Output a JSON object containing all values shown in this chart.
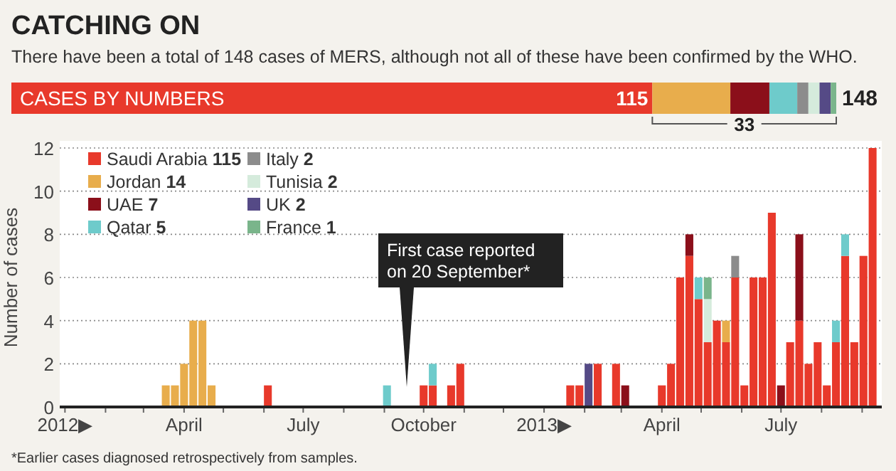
{
  "chart_data": [
    {
      "type": "bar",
      "orientation": "horizontal",
      "stacked": true,
      "title": "CATCHING ON",
      "subtitle": "There have been a total of 148 cases of MERS, although not all of these have been confirmed by the WHO.",
      "categories": [
        "CASES BY NUMBERS"
      ],
      "xlim": [
        0,
        148
      ],
      "tick_labels": false,
      "totals": [
        "148"
      ],
      "annotations": [
        "33"
      ],
      "series": [
        {
          "color": "#e8392b",
          "values": [
            115
          ],
          "value_labels": [
            "115"
          ]
        },
        {
          "color": "#e8ad4c",
          "values": [
            14
          ]
        },
        {
          "color": "#8b0f1a",
          "values": [
            7
          ]
        },
        {
          "color": "#6ecbcb",
          "values": [
            5
          ]
        },
        {
          "color": "#8c8c8c",
          "values": [
            2
          ]
        },
        {
          "color": "#d5ebdc",
          "values": [
            2
          ]
        },
        {
          "color": "#554a86",
          "values": [
            2
          ]
        },
        {
          "color": "#7ab58b",
          "values": [
            1
          ]
        }
      ]
    },
    {
      "type": "bar",
      "stacked": true,
      "ylabel": "Number of cases",
      "grid": "y",
      "legend": "top left",
      "ylim": [
        0,
        12
      ],
      "yticks": [
        0,
        2,
        4,
        6,
        8,
        10,
        12
      ],
      "xlim": [
        "2011-12-28",
        "2013-09-16"
      ],
      "xticks": [
        {
          "value": "2012-01-01",
          "label": "2012▶"
        },
        {
          "value": "2012-02-01",
          "label": null
        },
        {
          "value": "2012-03-01",
          "label": null
        },
        {
          "value": "2012-04-01",
          "label": "April"
        },
        {
          "value": "2012-05-01",
          "label": null
        },
        {
          "value": "2012-06-01",
          "label": null
        },
        {
          "value": "2012-07-01",
          "label": "July"
        },
        {
          "value": "2012-08-01",
          "label": null
        },
        {
          "value": "2012-09-01",
          "label": null
        },
        {
          "value": "2012-10-01",
          "label": "October"
        },
        {
          "value": "2012-11-01",
          "label": null
        },
        {
          "value": "2012-12-01",
          "label": null
        },
        {
          "value": "2013-01-01",
          "label": "2013▶"
        },
        {
          "value": "2013-02-01",
          "label": null
        },
        {
          "value": "2013-03-01",
          "label": null
        },
        {
          "value": "2013-04-01",
          "label": "April"
        },
        {
          "value": "2013-05-01",
          "label": null
        },
        {
          "value": "2013-06-01",
          "label": null
        },
        {
          "value": "2013-07-01",
          "label": "July"
        },
        {
          "value": "2013-08-01",
          "label": null
        },
        {
          "value": "2013-09-01",
          "label": null
        }
      ],
      "x": [
        "2012-03-18",
        "2012-03-25",
        "2012-04-01",
        "2012-04-08",
        "2012-04-15",
        "2012-04-22",
        "2012-06-04",
        "2012-09-03",
        "2012-10-01",
        "2012-10-08",
        "2012-10-22",
        "2012-10-29",
        "2013-01-21",
        "2013-01-28",
        "2013-02-04",
        "2013-02-11",
        "2013-02-25",
        "2013-03-04",
        "2013-04-01",
        "2013-04-08",
        "2013-04-15",
        "2013-04-22",
        "2013-04-29",
        "2013-05-06",
        "2013-05-13",
        "2013-05-20",
        "2013-05-27",
        "2013-06-03",
        "2013-06-10",
        "2013-06-17",
        "2013-06-24",
        "2013-07-01",
        "2013-07-08",
        "2013-07-15",
        "2013-07-22",
        "2013-07-29",
        "2013-08-05",
        "2013-08-12",
        "2013-08-19",
        "2013-08-26",
        "2013-09-02",
        "2013-09-09"
      ],
      "annotations": [
        "First case reported on 20 September*",
        "*Earlier cases diagnosed retrospectively from samples."
      ],
      "series": [
        {
          "name": "Saudi Arabia 115",
          "color": "#e8392b",
          "values": [
            null,
            null,
            null,
            null,
            null,
            null,
            1,
            null,
            1,
            1,
            1,
            2,
            1,
            1,
            null,
            2,
            2,
            null,
            1,
            2,
            6,
            7,
            5,
            3,
            4,
            3,
            6,
            1,
            6,
            6,
            9,
            null,
            3,
            4,
            2,
            3,
            1,
            3,
            7,
            3,
            7,
            12
          ]
        },
        {
          "name": "Jordan 14",
          "color": "#e8ad4c",
          "values": [
            1,
            1,
            2,
            4,
            4,
            1,
            null,
            null,
            null,
            null,
            null,
            null,
            null,
            null,
            null,
            null,
            null,
            null,
            null,
            null,
            null,
            null,
            null,
            null,
            null,
            1,
            null,
            null,
            null,
            null,
            null,
            null,
            null,
            null,
            null,
            null,
            null,
            null,
            null,
            null,
            null,
            null
          ]
        },
        {
          "name": "UAE 7",
          "color": "#8b0f1a",
          "values": [
            null,
            null,
            null,
            null,
            null,
            null,
            null,
            null,
            null,
            null,
            null,
            null,
            null,
            null,
            null,
            null,
            null,
            1,
            null,
            null,
            null,
            1,
            null,
            null,
            null,
            null,
            null,
            null,
            null,
            null,
            null,
            1,
            null,
            4,
            null,
            null,
            null,
            null,
            null,
            null,
            null,
            null
          ]
        },
        {
          "name": "Qatar 5",
          "color": "#6ecbcb",
          "values": [
            null,
            null,
            null,
            null,
            null,
            null,
            null,
            1,
            null,
            1,
            null,
            null,
            null,
            null,
            null,
            null,
            null,
            null,
            null,
            null,
            null,
            null,
            1,
            null,
            null,
            null,
            null,
            null,
            null,
            null,
            null,
            null,
            null,
            null,
            null,
            null,
            null,
            1,
            1,
            null,
            null,
            null
          ]
        },
        {
          "name": "Italy 2",
          "color": "#8c8c8c",
          "values": [
            null,
            null,
            null,
            null,
            null,
            null,
            null,
            null,
            null,
            null,
            null,
            null,
            null,
            null,
            null,
            null,
            null,
            null,
            null,
            null,
            null,
            null,
            null,
            null,
            null,
            null,
            1,
            null,
            null,
            null,
            null,
            null,
            null,
            null,
            null,
            null,
            null,
            null,
            null,
            null,
            null,
            null
          ]
        },
        {
          "name": "Tunisia 2",
          "color": "#d5ebdc",
          "values": [
            null,
            null,
            null,
            null,
            null,
            null,
            null,
            null,
            null,
            null,
            null,
            null,
            null,
            null,
            null,
            null,
            null,
            null,
            null,
            null,
            null,
            null,
            null,
            2,
            null,
            null,
            null,
            null,
            null,
            null,
            null,
            null,
            null,
            null,
            null,
            null,
            null,
            null,
            null,
            null,
            null,
            null
          ]
        },
        {
          "name": "UK 2",
          "color": "#554a86",
          "values": [
            null,
            null,
            null,
            null,
            null,
            null,
            null,
            null,
            null,
            null,
            null,
            null,
            null,
            null,
            2,
            null,
            null,
            null,
            null,
            null,
            null,
            null,
            null,
            null,
            null,
            null,
            null,
            null,
            null,
            null,
            null,
            null,
            null,
            null,
            null,
            null,
            null,
            null,
            null,
            null,
            null,
            null
          ]
        },
        {
          "name": "France 1",
          "color": "#7ab58b",
          "values": [
            null,
            null,
            null,
            null,
            null,
            null,
            null,
            null,
            null,
            null,
            null,
            null,
            null,
            null,
            null,
            null,
            null,
            null,
            null,
            null,
            null,
            null,
            null,
            1,
            null,
            null,
            null,
            null,
            null,
            null,
            null,
            null,
            null,
            null,
            null,
            null,
            null,
            null,
            null,
            null,
            null,
            null
          ]
        }
      ]
    }
  ]
}
